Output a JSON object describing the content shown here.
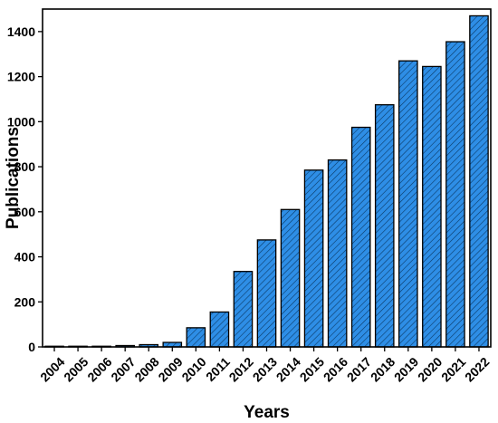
{
  "chart_data": {
    "type": "bar",
    "categories": [
      "2004",
      "2005",
      "2006",
      "2007",
      "2008",
      "2009",
      "2010",
      "2011",
      "2012",
      "2013",
      "2014",
      "2015",
      "2016",
      "2017",
      "2018",
      "2019",
      "2020",
      "2021",
      "2022"
    ],
    "values": [
      3,
      3,
      3,
      6,
      10,
      20,
      85,
      155,
      335,
      475,
      610,
      785,
      830,
      975,
      1075,
      1270,
      1245,
      1355,
      1470
    ],
    "title": "",
    "xlabel": "Years",
    "ylabel": "Publications",
    "ylim": [
      0,
      1500
    ],
    "yticks": [
      0,
      200,
      400,
      600,
      800,
      1000,
      1200,
      1400
    ],
    "grid": false,
    "bar_color": "#2e8ee6",
    "hatch_color": "#0b3a66",
    "edge_color": "#000000"
  }
}
